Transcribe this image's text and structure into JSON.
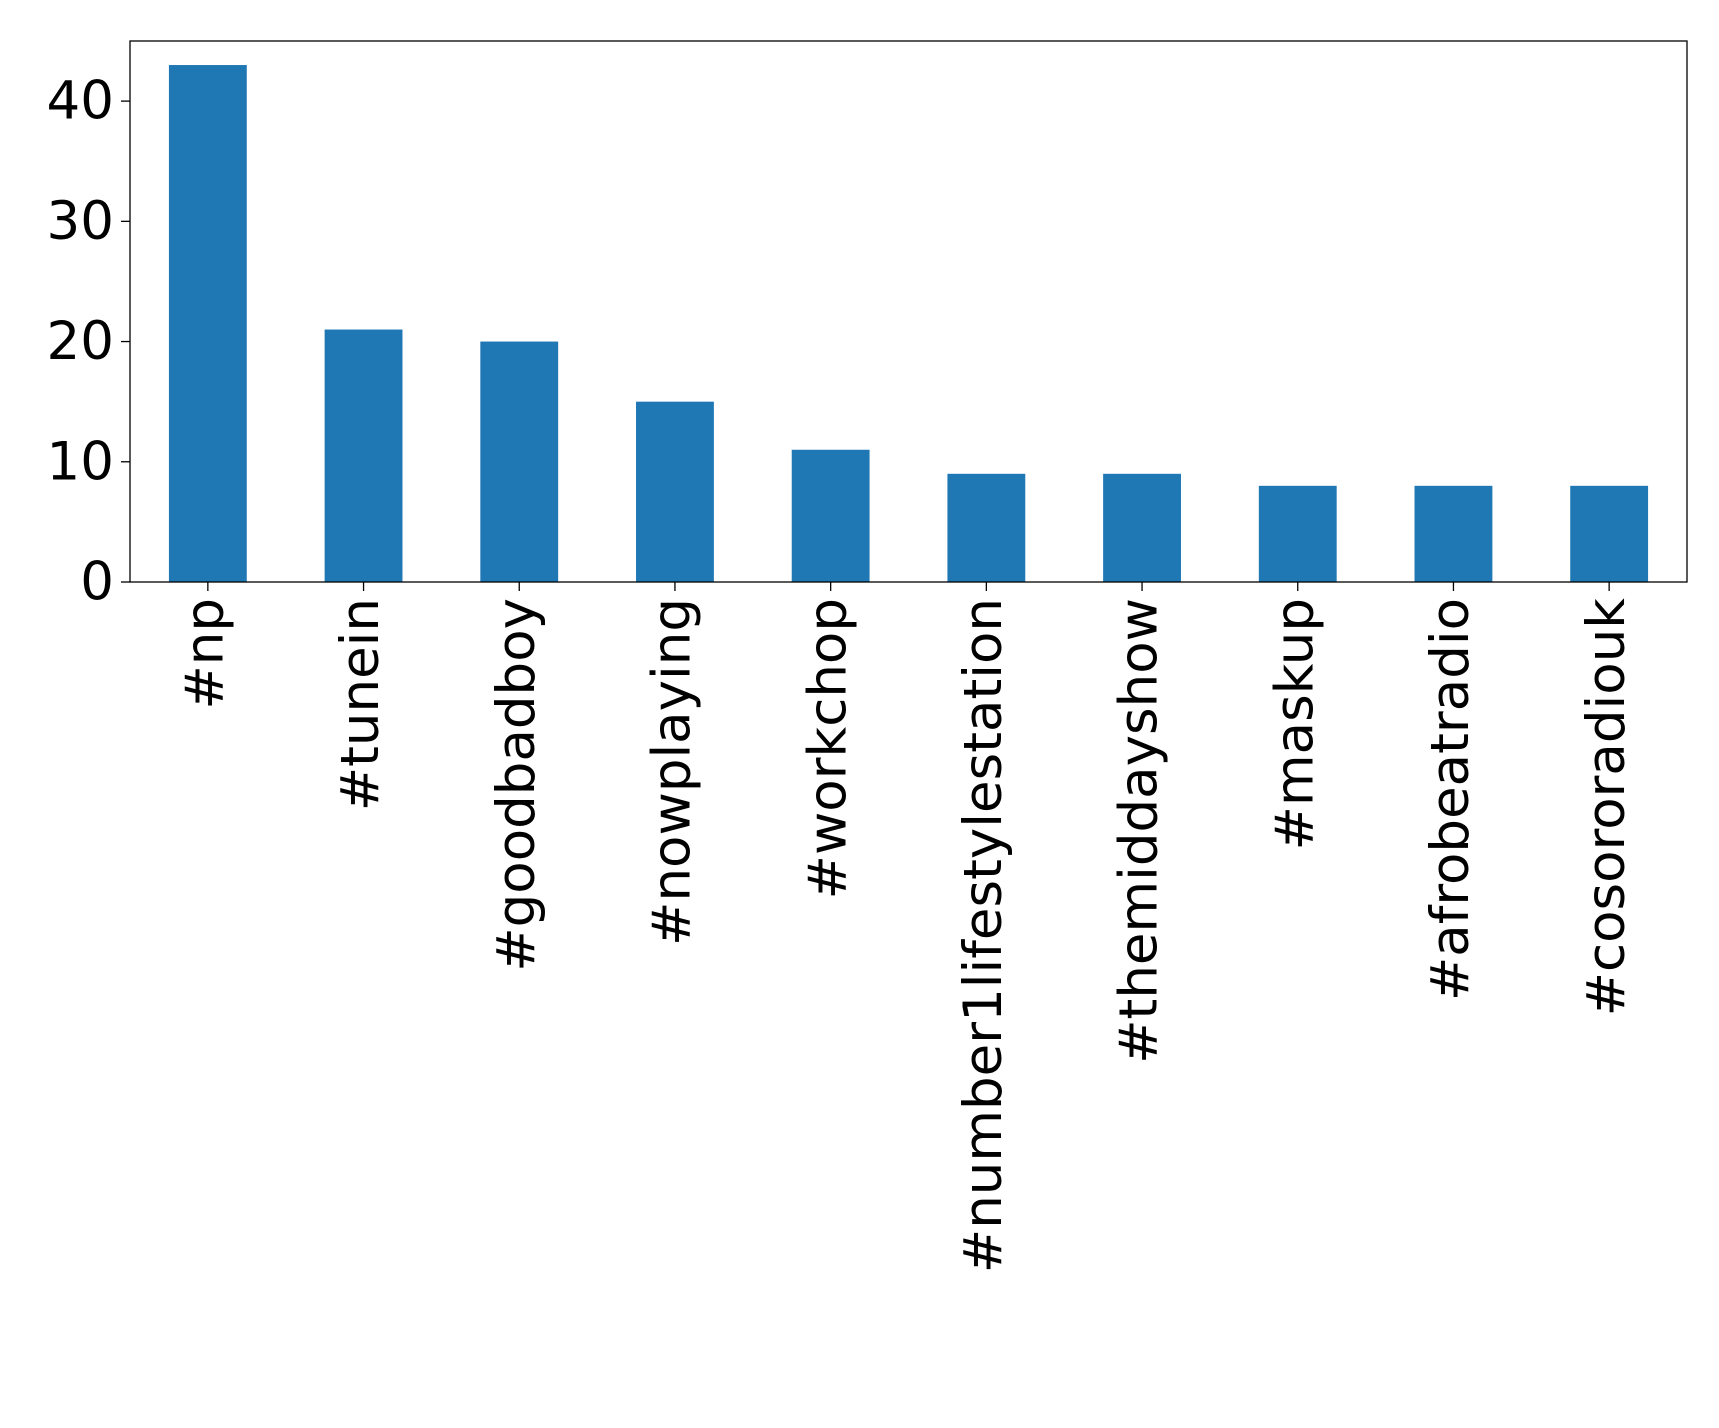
{
  "chart_data": {
    "type": "bar",
    "categories": [
      "#np",
      "#tunein",
      "#goodbadboy",
      "#nowplaying",
      "#workchop",
      "#number1lifestylestation",
      "#themiddayshow",
      "#maskup",
      "#afrobeatradio",
      "#cosororadiouk"
    ],
    "values": [
      43,
      21,
      20,
      15,
      11,
      9,
      9,
      8,
      8,
      8
    ],
    "color": "#1f77b4",
    "ylim": [
      0,
      45
    ],
    "yticks": [
      0,
      10,
      20,
      30,
      40
    ],
    "grid": false
  }
}
